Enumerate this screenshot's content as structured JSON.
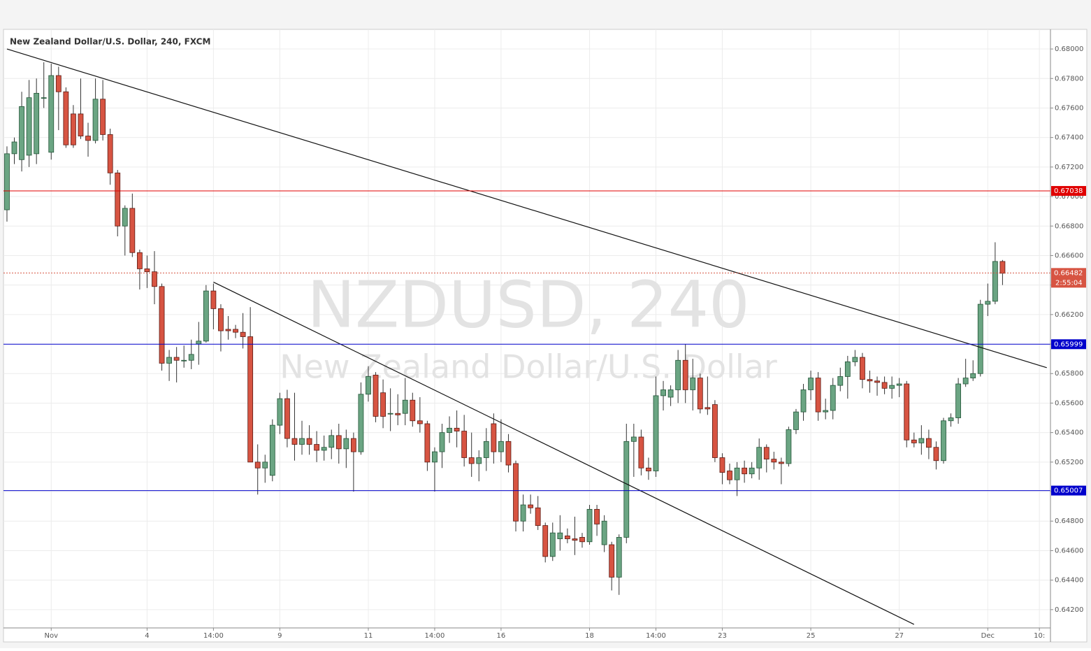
{
  "chart_data": {
    "type": "candlestick",
    "title": "New Zealand Dollar/U.S. Dollar, 240, FXCM",
    "watermark": "NZDUSD, 240",
    "watermark_subtitle": "New Zealand Dollar/U.S. Dollar",
    "up_color": "#6ba583",
    "down_color": "#d75442",
    "open": [
      0.6691,
      0.6729,
      0.6725,
      0.6728,
      0.6729,
      0.6767,
      0.673,
      0.6782,
      0.6771,
      0.6756,
      0.6756,
      0.6741,
      0.6738,
      0.6766,
      0.6742,
      0.6716,
      0.668,
      0.6692,
      0.6662,
      0.6651,
      0.6649,
      0.6639,
      0.6587,
      0.6591,
      0.6589,
      0.6589,
      0.66,
      0.6602,
      0.6636,
      0.6624,
      0.661,
      0.661,
      0.6608,
      0.6605,
      0.652,
      0.6516,
      0.6511,
      0.6545,
      0.6563,
      0.6536,
      0.6532,
      0.6536,
      0.6532,
      0.6528,
      0.653,
      0.6538,
      0.6529,
      0.6536,
      0.6527,
      0.6566,
      0.6579,
      0.6567,
      0.6553,
      0.6553,
      0.6553,
      0.6562,
      0.6548,
      0.6546,
      0.652,
      0.6527,
      0.654,
      0.6543,
      0.6541,
      0.6523,
      0.6519,
      0.6523,
      0.6546,
      0.6527,
      0.6534,
      0.6519,
      0.648,
      0.6491,
      0.6489,
      0.6477,
      0.6456,
      0.6468,
      0.647,
      0.6468,
      0.6469,
      0.6466,
      0.6488,
      0.6464,
      0.6464,
      0.6442,
      0.6469,
      0.6534,
      0.6537,
      0.6516,
      0.6514,
      0.6565,
      0.6564,
      0.6569,
      0.6589,
      0.6569,
      0.6577,
      0.6557,
      0.6559,
      0.6523,
      0.6514,
      0.6508,
      0.6516,
      0.6512,
      0.6516,
      0.653,
      0.6522,
      0.652,
      0.6519,
      0.6542,
      0.6554,
      0.6569,
      0.6577,
      0.6554,
      0.6555,
      0.6572,
      0.6578,
      0.6588,
      0.6591,
      0.6576,
      0.6575,
      0.6574,
      0.657,
      0.6572,
      0.6573,
      0.6535,
      0.6533,
      0.6536,
      0.653,
      0.6521,
      0.6548,
      0.655,
      0.6573,
      0.6577,
      0.658,
      0.6627,
      0.6629,
      0.6656
    ],
    "high": [
      0.6734,
      0.674,
      0.6771,
      0.6779,
      0.678,
      0.6791,
      0.679,
      0.6788,
      0.6774,
      0.6762,
      0.678,
      0.675,
      0.678,
      0.6779,
      0.6746,
      0.6718,
      0.6694,
      0.6702,
      0.6664,
      0.666,
      0.6663,
      0.6641,
      0.6596,
      0.6598,
      0.6599,
      0.6603,
      0.6615,
      0.664,
      0.6641,
      0.6627,
      0.6619,
      0.6613,
      0.6621,
      0.6625,
      0.6532,
      0.6525,
      0.6549,
      0.6567,
      0.6569,
      0.6567,
      0.6548,
      0.6545,
      0.6541,
      0.6538,
      0.6542,
      0.6546,
      0.6542,
      0.654,
      0.6574,
      0.6585,
      0.6581,
      0.6576,
      0.657,
      0.6566,
      0.6577,
      0.6567,
      0.6564,
      0.6548,
      0.653,
      0.6546,
      0.6551,
      0.6555,
      0.6552,
      0.654,
      0.6528,
      0.6543,
      0.6553,
      0.6549,
      0.6539,
      0.6521,
      0.6498,
      0.6498,
      0.6497,
      0.6479,
      0.6479,
      0.6484,
      0.6475,
      0.6483,
      0.6472,
      0.6491,
      0.6491,
      0.6484,
      0.6466,
      0.6471,
      0.6546,
      0.6546,
      0.6542,
      0.6523,
      0.6578,
      0.6575,
      0.6572,
      0.6596,
      0.66,
      0.659,
      0.658,
      0.6578,
      0.6562,
      0.6526,
      0.6519,
      0.652,
      0.6521,
      0.652,
      0.6536,
      0.6532,
      0.6527,
      0.6523,
      0.6544,
      0.6556,
      0.6573,
      0.6582,
      0.6581,
      0.6563,
      0.6577,
      0.6584,
      0.6592,
      0.6596,
      0.6594,
      0.6582,
      0.6578,
      0.6578,
      0.6578,
      0.6577,
      0.6575,
      0.654,
      0.6545,
      0.6542,
      0.6534,
      0.655,
      0.6553,
      0.6577,
      0.659,
      0.6589,
      0.663,
      0.6641,
      0.6669,
      0.6657
    ],
    "low": [
      0.6683,
      0.6722,
      0.6717,
      0.672,
      0.6722,
      0.676,
      0.6725,
      0.6745,
      0.6733,
      0.6733,
      0.6739,
      0.6727,
      0.6736,
      0.6738,
      0.6708,
      0.6673,
      0.666,
      0.6659,
      0.6637,
      0.6638,
      0.6627,
      0.6582,
      0.6575,
      0.6574,
      0.6584,
      0.6583,
      0.6586,
      0.6601,
      0.661,
      0.6595,
      0.6603,
      0.6604,
      0.6597,
      0.652,
      0.6498,
      0.6506,
      0.6507,
      0.6539,
      0.653,
      0.6521,
      0.6525,
      0.6525,
      0.652,
      0.6521,
      0.6522,
      0.6519,
      0.6516,
      0.65,
      0.6525,
      0.6561,
      0.6547,
      0.6543,
      0.6541,
      0.6545,
      0.6545,
      0.6544,
      0.654,
      0.6514,
      0.65,
      0.6516,
      0.6533,
      0.653,
      0.6517,
      0.651,
      0.6507,
      0.6514,
      0.6519,
      0.652,
      0.6513,
      0.6473,
      0.6473,
      0.6485,
      0.6474,
      0.6452,
      0.6453,
      0.646,
      0.6465,
      0.6457,
      0.6462,
      0.6464,
      0.647,
      0.6459,
      0.6433,
      0.643,
      0.6465,
      0.651,
      0.6511,
      0.6508,
      0.651,
      0.6555,
      0.6558,
      0.656,
      0.656,
      0.6555,
      0.6553,
      0.6552,
      0.652,
      0.6505,
      0.6505,
      0.6497,
      0.6506,
      0.6509,
      0.6508,
      0.6513,
      0.6515,
      0.6505,
      0.6517,
      0.6539,
      0.6548,
      0.6562,
      0.6548,
      0.6549,
      0.6549,
      0.6568,
      0.6563,
      0.6585,
      0.657,
      0.6567,
      0.6565,
      0.6566,
      0.6563,
      0.6564,
      0.653,
      0.653,
      0.6525,
      0.6522,
      0.6515,
      0.6519,
      0.6544,
      0.6546,
      0.6571,
      0.6575,
      0.6578,
      0.6619,
      0.6627,
      0.664
    ],
    "close": [
      0.6729,
      0.6737,
      0.6761,
      0.6767,
      0.677,
      0.6767,
      0.6782,
      0.6771,
      0.6735,
      0.6735,
      0.6741,
      0.6738,
      0.6766,
      0.6742,
      0.6716,
      0.668,
      0.6692,
      0.6662,
      0.6651,
      0.6649,
      0.6639,
      0.6587,
      0.6591,
      0.6589,
      0.6589,
      0.6593,
      0.6602,
      0.6636,
      0.6624,
      0.6609,
      0.6609,
      0.6608,
      0.6605,
      0.652,
      0.6516,
      0.652,
      0.6545,
      0.6563,
      0.6536,
      0.6532,
      0.6536,
      0.6532,
      0.6528,
      0.653,
      0.6538,
      0.6529,
      0.6536,
      0.6527,
      0.6566,
      0.6578,
      0.6551,
      0.6551,
      0.6553,
      0.6552,
      0.6562,
      0.6548,
      0.6546,
      0.652,
      0.6527,
      0.654,
      0.6543,
      0.6541,
      0.6523,
      0.6519,
      0.6523,
      0.6534,
      0.6527,
      0.6534,
      0.6518,
      0.648,
      0.6491,
      0.6489,
      0.6477,
      0.6456,
      0.6472,
      0.6472,
      0.6468,
      0.6467,
      0.6466,
      0.6488,
      0.6478,
      0.648,
      0.6442,
      0.6469,
      0.6534,
      0.6537,
      0.6516,
      0.6514,
      0.6565,
      0.6569,
      0.6569,
      0.6589,
      0.6569,
      0.6577,
      0.6556,
      0.6556,
      0.6523,
      0.6513,
      0.6508,
      0.6516,
      0.6512,
      0.6516,
      0.653,
      0.6522,
      0.652,
      0.6519,
      0.6542,
      0.6554,
      0.6569,
      0.6577,
      0.6554,
      0.6555,
      0.6572,
      0.6578,
      0.6588,
      0.6591,
      0.6576,
      0.6575,
      0.6574,
      0.657,
      0.6572,
      0.6573,
      0.6535,
      0.6533,
      0.6536,
      0.653,
      0.6521,
      0.6548,
      0.655,
      0.6573,
      0.6577,
      0.658,
      0.6627,
      0.6629,
      0.6656,
      0.6648
    ],
    "xlim": [
      -0.47,
      141.5
    ],
    "xticks": [
      {
        "value": 6,
        "label": "Nov"
      },
      {
        "value": 19,
        "label": "4"
      },
      {
        "value": 28,
        "label": "14:00"
      },
      {
        "value": 37,
        "label": "9"
      },
      {
        "value": 49,
        "label": "11"
      },
      {
        "value": 58,
        "label": "14:00"
      },
      {
        "value": 67,
        "label": "16"
      },
      {
        "value": 79,
        "label": "18"
      },
      {
        "value": 88,
        "label": "14:00"
      },
      {
        "value": 97,
        "label": "23"
      },
      {
        "value": 109,
        "label": "25"
      },
      {
        "value": 121,
        "label": "27"
      },
      {
        "value": 133,
        "label": "Dec"
      },
      {
        "value": 140,
        "label": "10:"
      }
    ],
    "ylim": [
      0.64076,
      0.68133
    ],
    "yticks": [
      {
        "value": 0.642,
        "label": "0.64200"
      },
      {
        "value": 0.644,
        "label": "0.64400"
      },
      {
        "value": 0.646,
        "label": "0.64600"
      },
      {
        "value": 0.648,
        "label": "0.64800"
      },
      {
        "value": 0.65,
        "label": "0.65000"
      },
      {
        "value": 0.652,
        "label": "0.65200"
      },
      {
        "value": 0.654,
        "label": "0.65400"
      },
      {
        "value": 0.656,
        "label": "0.65600"
      },
      {
        "value": 0.658,
        "label": "0.65800"
      },
      {
        "value": 0.66,
        "label": "0.66000"
      },
      {
        "value": 0.662,
        "label": "0.66200"
      },
      {
        "value": 0.664,
        "label": "0.66400"
      },
      {
        "value": 0.666,
        "label": "0.66600"
      },
      {
        "value": 0.668,
        "label": "0.66800"
      },
      {
        "value": 0.67,
        "label": "0.67000"
      },
      {
        "value": 0.672,
        "label": "0.67200"
      },
      {
        "value": 0.674,
        "label": "0.67400"
      },
      {
        "value": 0.676,
        "label": "0.67600"
      },
      {
        "value": 0.678,
        "label": "0.67800"
      },
      {
        "value": 0.68,
        "label": "0.68000"
      }
    ],
    "grid": true,
    "levels": [
      {
        "value": 0.67038,
        "color": "#e00000"
      },
      {
        "value": 0.65999,
        "color": "#0000cc"
      },
      {
        "value": 0.65007,
        "color": "#0000cc"
      }
    ],
    "current_price": {
      "value": 0.66482,
      "countdown": "2:55:04",
      "color": "#d75442"
    },
    "trend_lines": [
      {
        "x": [
          0,
          141
        ],
        "y": [
          0.68,
          0.6584
        ]
      },
      {
        "x": [
          28,
          123
        ],
        "y": [
          0.6642,
          0.641
        ]
      }
    ]
  }
}
